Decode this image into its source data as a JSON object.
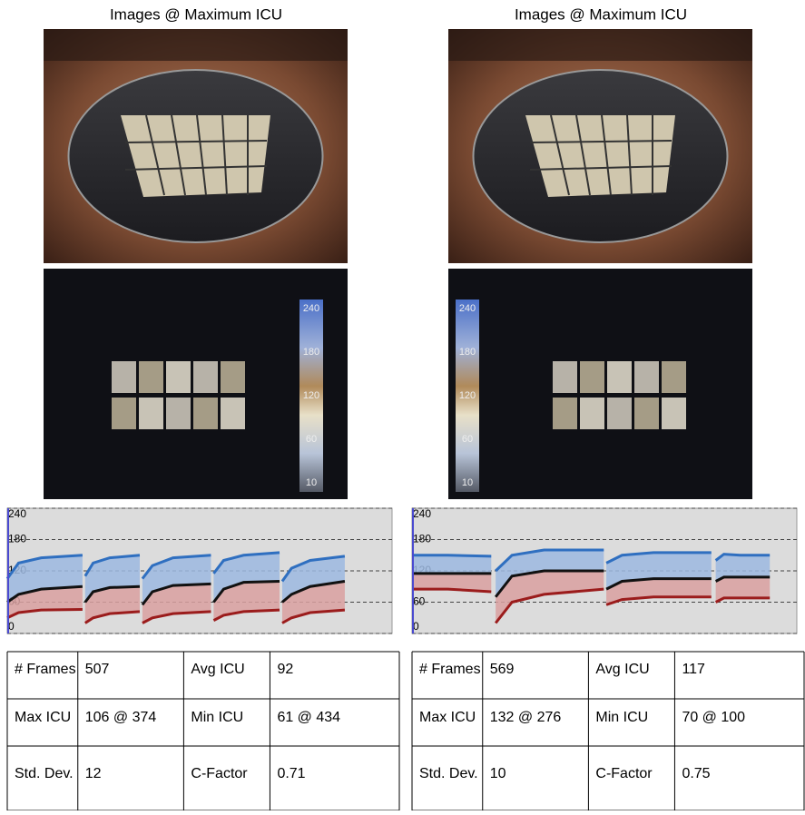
{
  "panels": [
    {
      "title": "Images @ Maximum ICU",
      "colorbar": {
        "labels": [
          "240",
          "180",
          "120",
          "60",
          "10"
        ]
      },
      "chart_data": {
        "type": "line",
        "x": [
          0,
          17,
          51,
          113,
          null,
          117,
          129,
          154,
          199,
          null,
          203,
          218,
          249,
          306,
          null,
          310,
          325,
          355,
          409,
          null,
          413,
          427,
          455,
          507
        ],
        "xlim": [
          0,
          578
        ],
        "ylim": [
          0,
          240
        ],
        "yticks": [
          0,
          60,
          120,
          180,
          240
        ],
        "grid": true,
        "series": [
          {
            "color": "#2f6fc0",
            "values": [
              105,
              135,
              145,
              150,
              null,
              110,
              135,
              145,
              150,
              null,
              105,
              130,
              145,
              150,
              null,
              115,
              140,
              150,
              155,
              null,
              100,
              125,
              140,
              148
            ]
          },
          {
            "color": "#111111",
            "values": [
              60,
              75,
              85,
              90,
              null,
              60,
              80,
              88,
              90,
              null,
              55,
              80,
              92,
              95,
              null,
              60,
              85,
              98,
              100,
              null,
              60,
              75,
              90,
              100
            ]
          },
          {
            "color": "#9b1c1c",
            "values": [
              30,
              40,
              45,
              46,
              null,
              20,
              30,
              38,
              42,
              null,
              20,
              30,
              38,
              42,
              null,
              25,
              35,
              42,
              45,
              null,
              20,
              30,
              40,
              45
            ]
          }
        ]
      },
      "table": {
        "rows": [
          [
            "# Frames",
            "507",
            "Avg ICU",
            "92"
          ],
          [
            "Max ICU",
            "106 @ 374",
            "Min ICU",
            "61 @ 434"
          ],
          [
            "Std. Dev.",
            "12",
            "C-Factor",
            "0.71"
          ]
        ]
      }
    },
    {
      "title": "Images @ Maximum ICU",
      "colorbar": {
        "labels": [
          "240",
          "180",
          "120",
          "60",
          "10"
        ]
      },
      "chart_data": {
        "type": "line",
        "x": [
          0,
          19,
          57,
          126,
          null,
          133,
          159,
          210,
          305,
          null,
          309,
          334,
          384,
          476,
          null,
          483,
          496,
          522,
          569
        ],
        "xlim": [
          0,
          612
        ],
        "ylim": [
          0,
          240
        ],
        "yticks": [
          0,
          60,
          120,
          180,
          240
        ],
        "grid": true,
        "series": [
          {
            "color": "#2f6fc0",
            "values": [
              150,
              150,
              150,
              148,
              null,
              120,
              150,
              160,
              160,
              null,
              135,
              150,
              155,
              155,
              null,
              140,
              152,
              150,
              150
            ]
          },
          {
            "color": "#111111",
            "values": [
              115,
              115,
              115,
              115,
              null,
              70,
              110,
              120,
              120,
              null,
              85,
              100,
              105,
              105,
              null,
              100,
              108,
              108,
              108
            ]
          },
          {
            "color": "#9b1c1c",
            "values": [
              85,
              85,
              85,
              80,
              null,
              20,
              60,
              75,
              85,
              null,
              55,
              65,
              70,
              70,
              null,
              60,
              68,
              68,
              68
            ]
          }
        ]
      },
      "table": {
        "rows": [
          [
            "# Frames",
            "569",
            "Avg ICU",
            "117"
          ],
          [
            "Max ICU",
            "132 @ 276",
            "Min ICU",
            "70 @ 100"
          ],
          [
            "Std. Dev.",
            "10",
            "C-Factor",
            "0.75"
          ]
        ]
      }
    }
  ]
}
